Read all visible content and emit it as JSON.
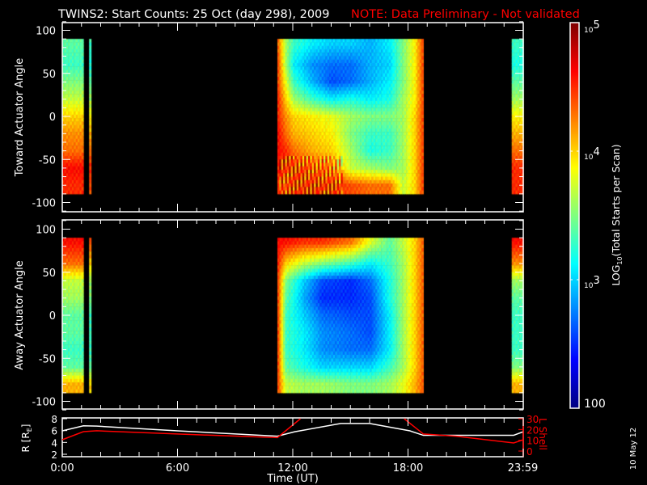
{
  "title": "TWINS2: Start Counts: 25 Oct (day 298), 2009",
  "note": "NOTE: Data Preliminary - Not validated",
  "date_stamp": "10 May 12",
  "colors": {
    "background": "#000000",
    "axes": "#ffffff",
    "note": "#ff0000",
    "r_line": "#ffffff",
    "lshell_line": "#ff0000",
    "colormap": "jet"
  },
  "chart_data": [
    {
      "type": "heatmap",
      "panel": "toward",
      "ylabel": "Toward Actuator Angle",
      "ylim": [
        -110,
        110
      ],
      "yticks": [
        "100",
        "50",
        "0",
        "-50",
        "-100"
      ],
      "xlim_hours": [
        0,
        24
      ],
      "angles": [
        85,
        60,
        40,
        20,
        0,
        -20,
        -40,
        -60,
        -80
      ],
      "value_units": "log10 counts",
      "blocks": [
        {
          "start": 0.0,
          "end": 1.1,
          "columns": [
            {
              "t": 0.0,
              "v": [
                3.4,
                3.3,
                3.5,
                3.7,
                4.0,
                4.2,
                4.3,
                4.6,
                4.5
              ]
            }
          ]
        },
        {
          "start": 1.4,
          "end": 1.5,
          "columns": [
            {
              "t": 1.4,
              "v": [
                3.3,
                3.2,
                3.4,
                3.6,
                3.9,
                4.1,
                4.3,
                4.5,
                4.4
              ]
            }
          ]
        },
        {
          "start": 11.2,
          "end": 18.8,
          "columns": [
            {
              "t": 11.2,
              "v": [
                4.3,
                4.4,
                4.4,
                4.5,
                4.5,
                4.6,
                4.6,
                4.5,
                4.5
              ]
            },
            {
              "t": 11.6,
              "v": [
                3.6,
                3.6,
                3.8,
                4.0,
                4.2,
                4.3,
                4.5,
                4.5,
                4.4
              ]
            },
            {
              "t": 12.0,
              "v": [
                3.3,
                3.1,
                3.3,
                3.6,
                4.0,
                4.1,
                4.3,
                4.5,
                4.5
              ]
            },
            {
              "t": 13.0,
              "v": [
                3.1,
                2.8,
                2.9,
                3.3,
                3.9,
                4.0,
                4.1,
                4.4,
                4.5
              ]
            },
            {
              "t": 14.0,
              "v": [
                3.0,
                2.7,
                2.6,
                3.1,
                3.8,
                3.9,
                4.0,
                4.3,
                4.5
              ]
            },
            {
              "t": 15.0,
              "v": [
                3.0,
                2.7,
                2.7,
                3.2,
                3.6,
                3.5,
                3.6,
                3.7,
                4.4
              ]
            },
            {
              "t": 16.0,
              "v": [
                2.9,
                2.9,
                2.9,
                3.1,
                3.5,
                3.3,
                3.2,
                3.6,
                4.3
              ]
            },
            {
              "t": 17.0,
              "v": [
                3.1,
                3.0,
                3.1,
                3.2,
                3.5,
                3.3,
                3.3,
                3.5,
                4.3
              ]
            },
            {
              "t": 17.7,
              "v": [
                3.5,
                3.5,
                3.5,
                3.6,
                3.6,
                3.6,
                3.6,
                3.6,
                3.7
              ]
            },
            {
              "t": 18.3,
              "v": [
                3.9,
                3.9,
                3.9,
                3.9,
                4.0,
                4.0,
                4.0,
                4.0,
                4.0
              ]
            },
            {
              "t": 18.8,
              "v": [
                4.5,
                4.5,
                4.5,
                4.5,
                4.5,
                4.5,
                4.5,
                4.5,
                4.5
              ]
            }
          ]
        },
        {
          "start": 23.4,
          "end": 24.0,
          "columns": [
            {
              "t": 23.4,
              "v": [
                3.3,
                3.2,
                3.4,
                3.6,
                3.9,
                4.1,
                4.3,
                4.5,
                4.5
              ]
            }
          ]
        }
      ]
    },
    {
      "type": "heatmap",
      "panel": "away",
      "ylabel": "Away Actuator Angle",
      "ylim": [
        -110,
        110
      ],
      "yticks": [
        "100",
        "50",
        "0",
        "-50",
        "-100"
      ],
      "xlim_hours": [
        0,
        24
      ],
      "angles": [
        85,
        60,
        40,
        20,
        0,
        -20,
        -40,
        -60,
        -80
      ],
      "value_units": "log10 counts",
      "blocks": [
        {
          "start": 0.0,
          "end": 1.1,
          "columns": [
            {
              "t": 0.0,
              "v": [
                4.6,
                4.3,
                3.7,
                3.6,
                3.4,
                3.4,
                3.3,
                3.4,
                4.1
              ]
            }
          ]
        },
        {
          "start": 1.4,
          "end": 1.5,
          "columns": [
            {
              "t": 1.4,
              "v": [
                4.4,
                4.0,
                3.6,
                3.5,
                3.3,
                3.3,
                3.3,
                3.4,
                4.0
              ]
            }
          ]
        },
        {
          "start": 11.2,
          "end": 18.8,
          "columns": [
            {
              "t": 11.2,
              "v": [
                4.6,
                4.5,
                4.4,
                4.4,
                4.4,
                4.4,
                4.4,
                4.4,
                4.4
              ]
            },
            {
              "t": 11.6,
              "v": [
                4.6,
                4.0,
                3.5,
                3.4,
                3.3,
                3.3,
                3.3,
                3.4,
                3.7
              ]
            },
            {
              "t": 12.5,
              "v": [
                4.5,
                3.7,
                3.0,
                2.9,
                3.0,
                3.1,
                3.1,
                3.2,
                3.6
              ]
            },
            {
              "t": 13.5,
              "v": [
                4.5,
                3.5,
                2.6,
                2.5,
                2.7,
                2.8,
                2.8,
                3.0,
                3.6
              ]
            },
            {
              "t": 15.0,
              "v": [
                4.3,
                3.3,
                2.5,
                2.5,
                2.6,
                2.7,
                2.7,
                3.0,
                3.5
              ]
            },
            {
              "t": 16.0,
              "v": [
                3.8,
                3.1,
                2.7,
                2.6,
                2.6,
                2.6,
                2.7,
                3.0,
                3.5
              ]
            },
            {
              "t": 17.0,
              "v": [
                3.4,
                3.3,
                3.2,
                3.2,
                3.1,
                3.1,
                3.1,
                3.3,
                3.6
              ]
            },
            {
              "t": 17.7,
              "v": [
                3.7,
                3.6,
                3.6,
                3.6,
                3.6,
                3.6,
                3.6,
                3.6,
                3.8
              ]
            },
            {
              "t": 18.3,
              "v": [
                4.0,
                4.0,
                4.0,
                4.0,
                4.0,
                4.0,
                4.0,
                4.0,
                4.1
              ]
            },
            {
              "t": 18.8,
              "v": [
                4.4,
                4.4,
                4.4,
                4.4,
                4.4,
                4.4,
                4.4,
                4.4,
                4.4
              ]
            }
          ]
        },
        {
          "start": 23.4,
          "end": 24.0,
          "columns": [
            {
              "t": 23.4,
              "v": [
                4.6,
                4.2,
                3.6,
                3.4,
                3.3,
                3.3,
                3.3,
                3.5,
                4.1
              ]
            }
          ]
        }
      ]
    },
    {
      "type": "line",
      "panel": "orbit",
      "ylabel": "R [R",
      "ylabel_sub": "E",
      "ylabel_close": "]",
      "ylim": [
        2,
        8
      ],
      "yticks": [
        "2",
        "4",
        "6",
        "8"
      ],
      "y2label": "L Shell",
      "y2lim": [
        0,
        30
      ],
      "y2ticks": [
        "0",
        "10",
        "20",
        "30"
      ],
      "xlabel": "Time (UT)",
      "xticks": [
        {
          "t": 0,
          "label": "0:00"
        },
        {
          "t": 6,
          "label": "6:00"
        },
        {
          "t": 12,
          "label": "12:00"
        },
        {
          "t": 18,
          "label": "18:00"
        },
        {
          "t": 23.98,
          "label": "23:59"
        }
      ],
      "series": [
        {
          "axis": "left",
          "x": [
            0,
            1.1,
            1.8,
            6,
            11.2,
            12.1,
            14.5,
            16,
            18.1,
            18.8,
            23.5,
            24
          ],
          "y": [
            5.95,
            6.8,
            6.75,
            5.95,
            5.05,
            5.8,
            7.2,
            7.2,
            5.95,
            5.2,
            5.2,
            5.8
          ]
        },
        {
          "axis": "right",
          "segments": [
            {
              "x": [
                0,
                1.1,
                1.8,
                6,
                11.2,
                12.4
              ],
              "y": [
                10.5,
                18,
                18.8,
                15.8,
                12.5,
                30
              ]
            },
            {
              "x": [
                17.8,
                18.8,
                20.5,
                23.5,
                24
              ],
              "y": [
                30,
                15.8,
                13.75,
                7.5,
                10.5
              ]
            }
          ]
        }
      ]
    }
  ],
  "colorbar": {
    "title_prefix": "LOG",
    "title_sub": "10",
    "title_rest": "(Total Starts per Scan)",
    "range_log10": [
      2,
      5
    ],
    "labels": [
      {
        "base": "10",
        "exp": "5",
        "v": 5
      },
      {
        "base": "10",
        "exp": "4",
        "v": 4
      },
      {
        "base": "10",
        "exp": "3",
        "v": 3
      },
      {
        "base": "100",
        "exp": "",
        "v": 2
      }
    ]
  }
}
